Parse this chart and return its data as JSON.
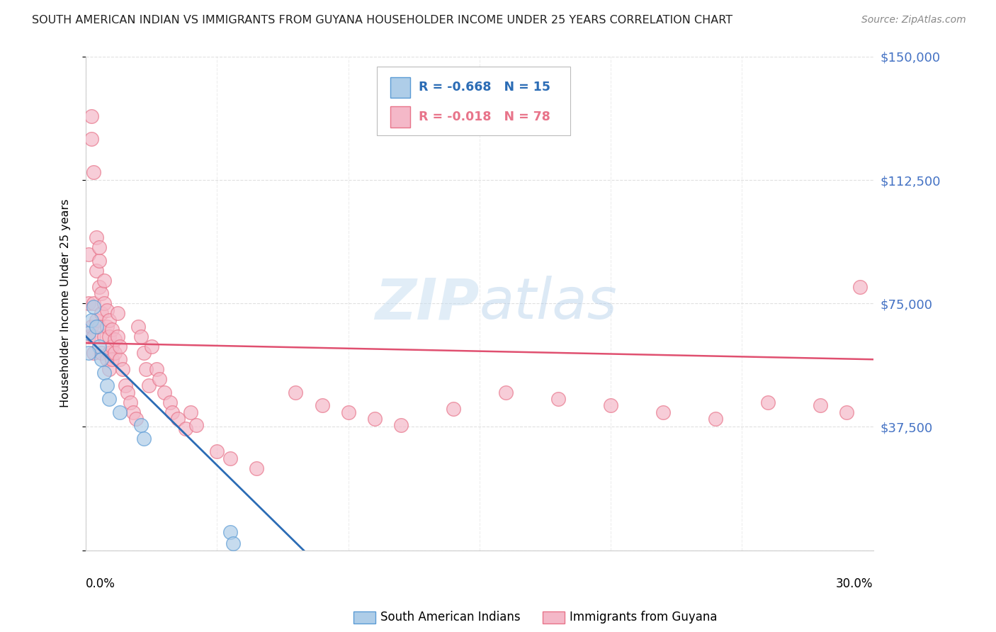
{
  "title": "SOUTH AMERICAN INDIAN VS IMMIGRANTS FROM GUYANA HOUSEHOLDER INCOME UNDER 25 YEARS CORRELATION CHART",
  "source": "Source: ZipAtlas.com",
  "ylabel": "Householder Income Under 25 years",
  "yticks": [
    0,
    37500,
    75000,
    112500,
    150000
  ],
  "ytick_labels": [
    "",
    "$37,500",
    "$75,000",
    "$112,500",
    "$150,000"
  ],
  "xmin": 0.0,
  "xmax": 0.3,
  "ymin": 0,
  "ymax": 150000,
  "legend_r1": "R = -0.668",
  "legend_n1": "N = 15",
  "legend_r2": "R = -0.018",
  "legend_n2": "N = 78",
  "legend_label1": "South American Indians",
  "legend_label2": "Immigrants from Guyana",
  "blue_face_color": "#aecde8",
  "blue_edge_color": "#5b9bd5",
  "pink_face_color": "#f4b8c8",
  "pink_edge_color": "#e8748a",
  "blue_line_color": "#2b6cb5",
  "pink_line_color": "#e05070",
  "grid_color": "#cccccc",
  "title_color": "#222222",
  "source_color": "#888888",
  "ytick_color": "#4472C4",
  "xtick_label_left": "0.0%",
  "xtick_label_right": "30.0%",
  "blue_scatter_x": [
    0.001,
    0.002,
    0.003,
    0.004,
    0.005,
    0.006,
    0.007,
    0.008,
    0.009,
    0.013,
    0.021,
    0.022,
    0.055,
    0.056,
    0.001
  ],
  "blue_scatter_y": [
    66000,
    70000,
    74000,
    68000,
    62000,
    58000,
    54000,
    50000,
    46000,
    42000,
    38000,
    34000,
    5500,
    2000,
    60000
  ],
  "pink_scatter_x": [
    0.001,
    0.001,
    0.001,
    0.002,
    0.002,
    0.002,
    0.003,
    0.003,
    0.003,
    0.003,
    0.004,
    0.004,
    0.004,
    0.005,
    0.005,
    0.005,
    0.005,
    0.006,
    0.006,
    0.006,
    0.007,
    0.007,
    0.007,
    0.008,
    0.008,
    0.008,
    0.009,
    0.009,
    0.009,
    0.009,
    0.01,
    0.01,
    0.01,
    0.011,
    0.011,
    0.012,
    0.012,
    0.013,
    0.013,
    0.014,
    0.015,
    0.016,
    0.017,
    0.018,
    0.019,
    0.02,
    0.021,
    0.022,
    0.023,
    0.024,
    0.025,
    0.027,
    0.028,
    0.03,
    0.032,
    0.033,
    0.035,
    0.038,
    0.04,
    0.042,
    0.05,
    0.055,
    0.065,
    0.08,
    0.09,
    0.1,
    0.11,
    0.12,
    0.14,
    0.16,
    0.18,
    0.2,
    0.22,
    0.24,
    0.26,
    0.28,
    0.29,
    0.295
  ],
  "pink_scatter_y": [
    90000,
    75000,
    65000,
    125000,
    132000,
    68000,
    115000,
    75000,
    65000,
    60000,
    95000,
    85000,
    70000,
    80000,
    88000,
    92000,
    68000,
    78000,
    72000,
    60000,
    82000,
    75000,
    65000,
    68000,
    73000,
    58000,
    65000,
    70000,
    60000,
    55000,
    62000,
    67000,
    58000,
    60000,
    64000,
    72000,
    65000,
    58000,
    62000,
    55000,
    50000,
    48000,
    45000,
    42000,
    40000,
    68000,
    65000,
    60000,
    55000,
    50000,
    62000,
    55000,
    52000,
    48000,
    45000,
    42000,
    40000,
    37000,
    42000,
    38000,
    30000,
    28000,
    25000,
    48000,
    44000,
    42000,
    40000,
    38000,
    43000,
    48000,
    46000,
    44000,
    42000,
    40000,
    45000,
    44000,
    42000,
    80000
  ]
}
